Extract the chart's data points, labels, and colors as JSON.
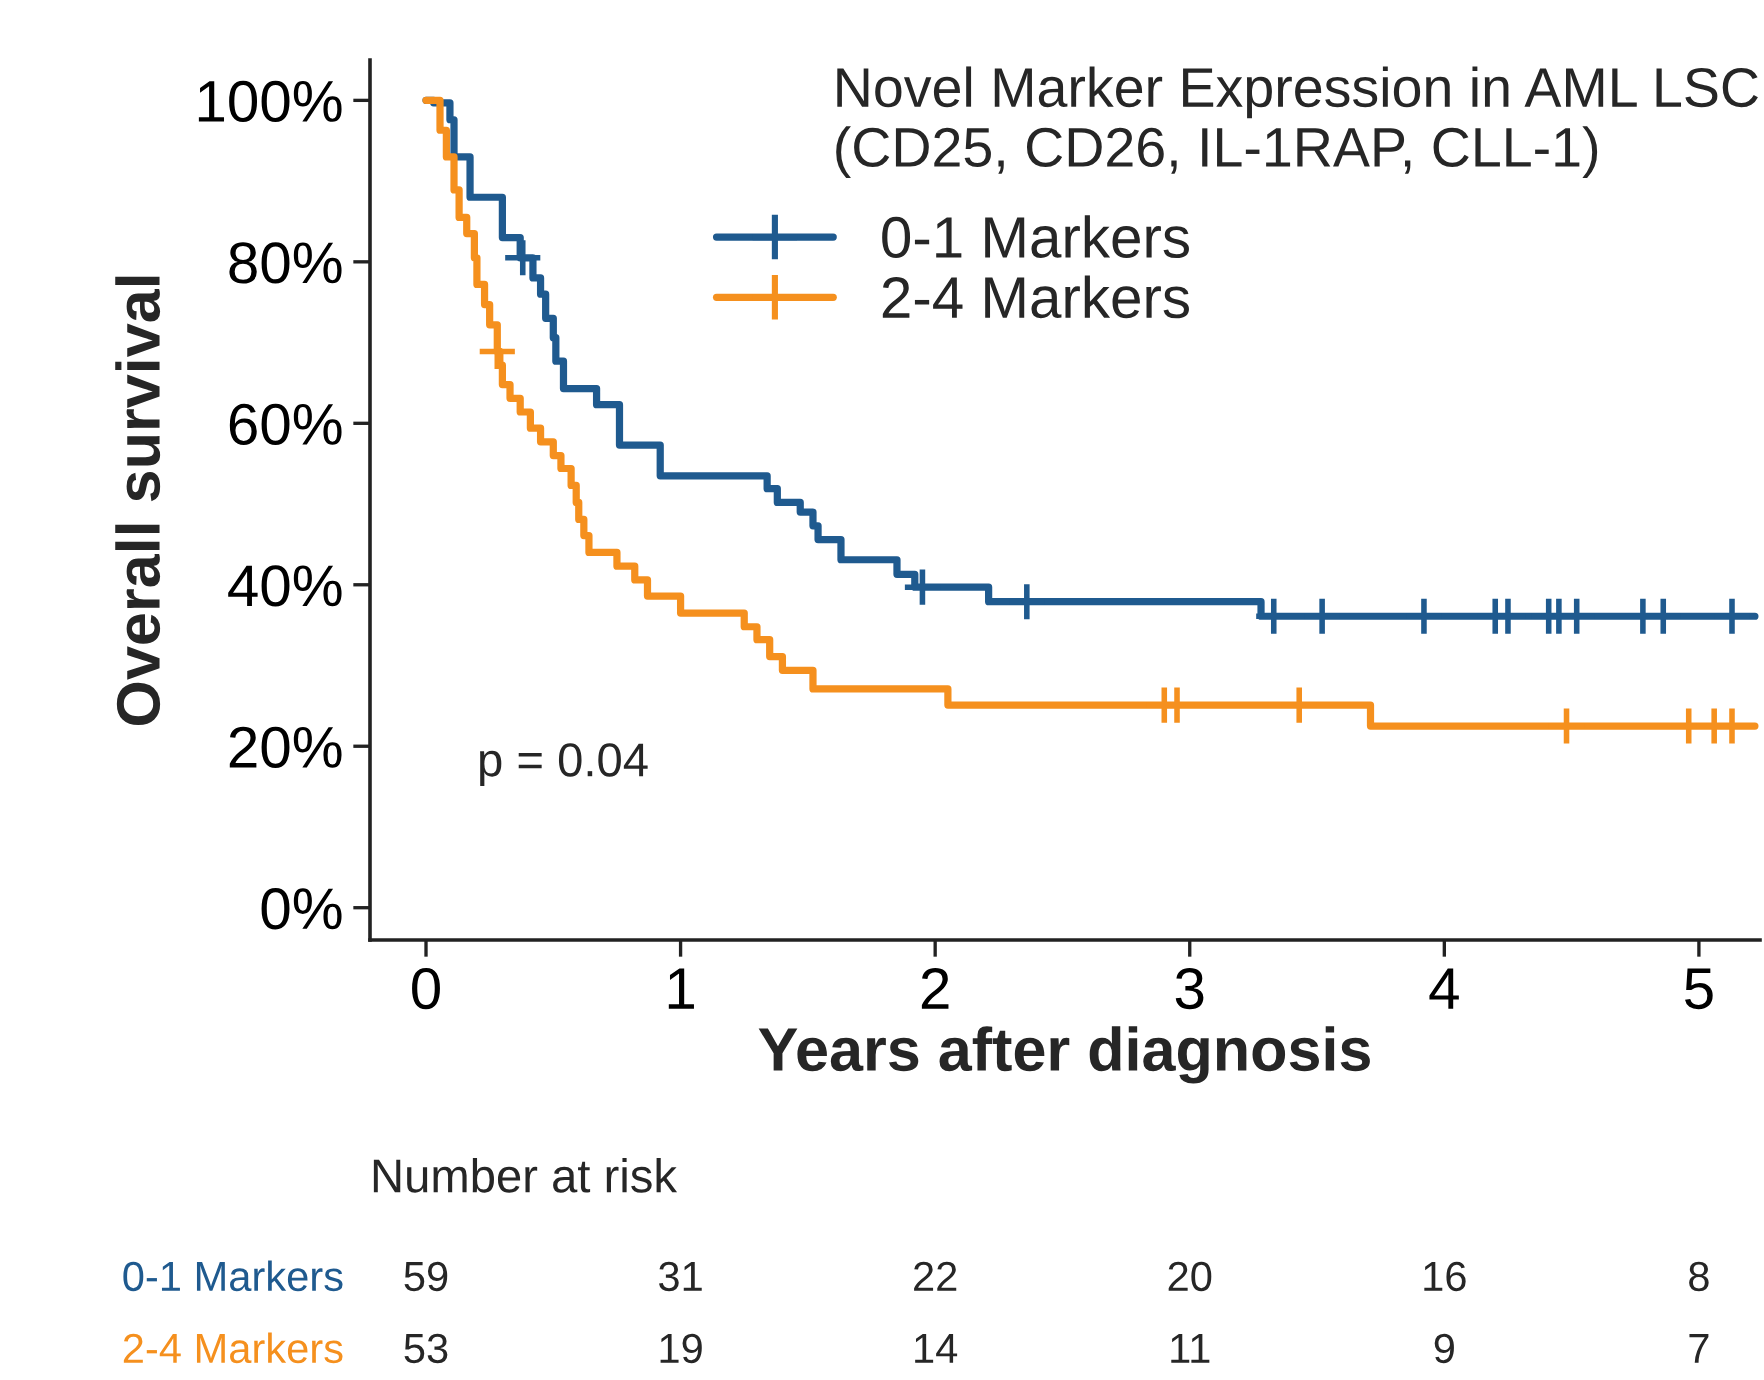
{
  "chart_data": {
    "type": "step",
    "title": "Novel Marker Expression in AML LSC\n(CD25, CD26, IL-1RAP, CLL-1)",
    "xlabel": "Years after diagnosis",
    "ylabel": "Overall survival",
    "xlim": [
      -0.22,
      5.24
    ],
    "xticks": [
      0,
      1,
      2,
      3,
      4,
      5
    ],
    "ylim": [
      -4,
      105
    ],
    "yticks": [
      {
        "value": 0,
        "label": "0%"
      },
      {
        "value": 20,
        "label": "20%"
      },
      {
        "value": 40,
        "label": "40%"
      },
      {
        "value": 60,
        "label": "60%"
      },
      {
        "value": 80,
        "label": "80%"
      },
      {
        "value": 100,
        "label": "100%"
      }
    ],
    "grid": false,
    "legend": "top",
    "line_style": "solid",
    "series": [
      {
        "name": "0-1 Markers",
        "color": "#1f5a8f",
        "x": [
          0,
          0.03,
          0.094,
          0.11,
          0.173,
          0.3,
          0.37,
          0.42,
          0.45,
          0.47,
          0.5,
          0.51,
          0.54,
          0.67,
          0.76,
          0.92,
          1.34,
          1.38,
          1.47,
          1.52,
          1.54,
          1.63,
          1.85,
          1.92,
          2.21,
          3.28,
          5.22
        ],
        "values": [
          100,
          99.7,
          97.6,
          93,
          88,
          83,
          80.5,
          78,
          76,
          73,
          70.6,
          67.7,
          64.3,
          62.3,
          57.3,
          53.5,
          51.9,
          50.2,
          49,
          47.3,
          45.6,
          43.1,
          41.3,
          39.7,
          37.9,
          36.1,
          36.1
        ]
      },
      {
        "name": "2-4 Markers",
        "color": "#f5901e",
        "x": [
          0,
          0.055,
          0.08,
          0.11,
          0.13,
          0.16,
          0.19,
          0.2,
          0.23,
          0.25,
          0.28,
          0.29,
          0.3,
          0.33,
          0.37,
          0.41,
          0.45,
          0.5,
          0.53,
          0.57,
          0.59,
          0.6,
          0.62,
          0.64,
          0.75,
          0.82,
          0.87,
          1.0,
          1.25,
          1.3,
          1.35,
          1.4,
          1.52,
          2.05,
          3.71,
          5.22
        ],
        "values": [
          100,
          96.3,
          93,
          88.9,
          85.5,
          83.5,
          80.5,
          77.2,
          74.7,
          72.2,
          68.9,
          67.2,
          64.8,
          63.1,
          61.4,
          59.4,
          57.7,
          56,
          54.4,
          52.3,
          50.2,
          48.1,
          46.1,
          44,
          42.3,
          40.6,
          38.6,
          36.5,
          34.8,
          33.2,
          31.1,
          29.4,
          27.1,
          25.1,
          22.5,
          22.5
        ]
      },
      {
        "type": "scatter",
        "marker": "cross",
        "color": "#1f5a8f",
        "x": [
          0.38,
          1.95,
          2.36,
          3.33,
          3.52,
          3.92,
          4.2,
          4.25,
          4.41,
          4.45,
          4.52,
          4.78,
          4.86,
          5.13
        ],
        "values": [
          80.5,
          39.7,
          37.9,
          36.1,
          36.1,
          36.1,
          36.1,
          36.1,
          36.1,
          36.1,
          36.1,
          36.1,
          36.1,
          36.1
        ]
      },
      {
        "type": "scatter",
        "marker": "cross",
        "color": "#f5901e",
        "x": [
          0.28,
          2.9,
          2.95,
          3.43,
          4.48,
          4.96,
          5.06,
          5.13
        ],
        "values": [
          68.9,
          25.1,
          25.1,
          25.1,
          22.5,
          22.5,
          22.5,
          22.5
        ]
      }
    ],
    "annotations": [
      "p = 0.04",
      "Number at risk",
      "0-1 Markers",
      "59",
      "31",
      "22",
      "20",
      "16",
      "8",
      "2-4 Markers",
      "53",
      "19",
      "14",
      "11",
      "9",
      "7"
    ]
  }
}
